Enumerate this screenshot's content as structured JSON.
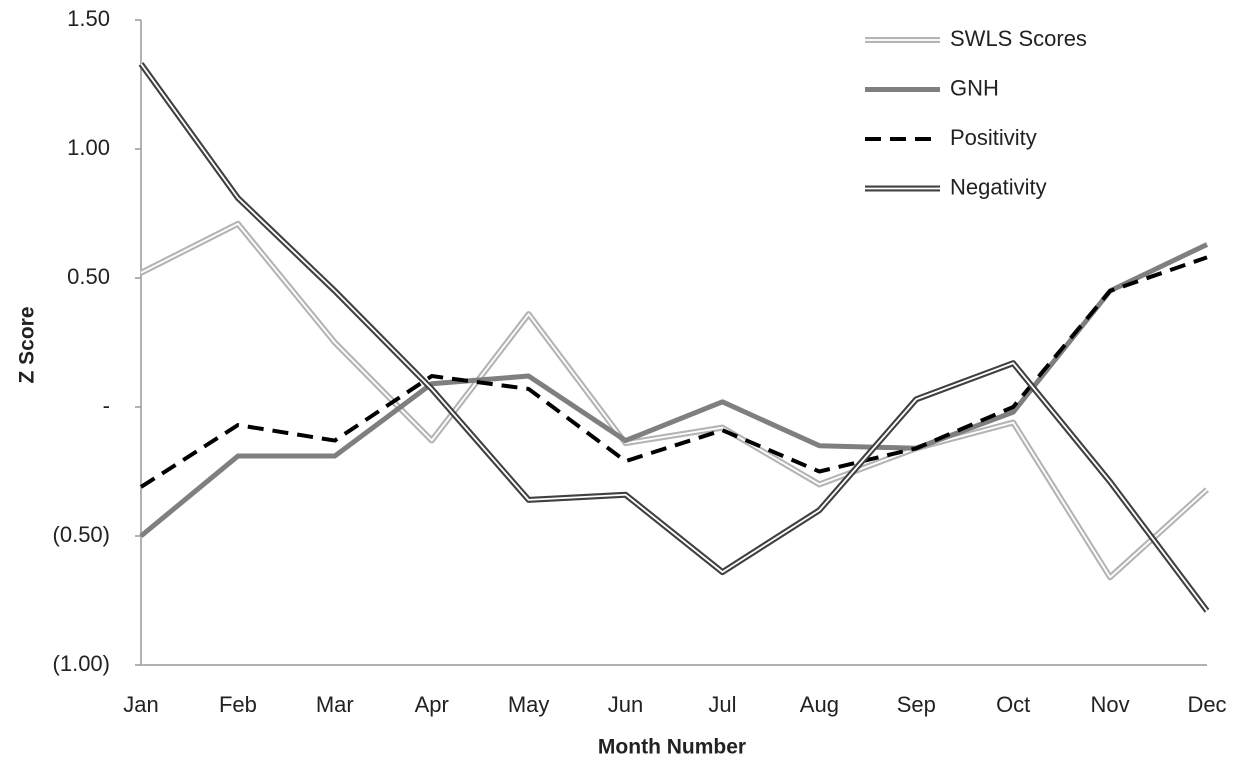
{
  "chart_data": {
    "type": "line",
    "x_label": "Month Number",
    "y_label": "Z Score",
    "categories": [
      "Jan",
      "Feb",
      "Mar",
      "Apr",
      "May",
      "Jun",
      "Jul",
      "Aug",
      "Sep",
      "Oct",
      "Nov",
      "Dec"
    ],
    "ylim": [
      -1,
      1.5
    ],
    "yticks": [
      {
        "value": -1,
        "label": "(1.00)"
      },
      {
        "value": -0.5,
        "label": "(0.50)"
      },
      {
        "value": 0,
        "label": "-"
      },
      {
        "value": 0.5,
        "label": "0.50"
      },
      {
        "value": 1,
        "label": "1.00"
      },
      {
        "value": 1.5,
        "label": "1.50"
      }
    ],
    "grid": false,
    "legend": "upper right",
    "series": [
      {
        "name": "SWLS Scores",
        "color": "#b4b4b4",
        "line_style": "double",
        "values": [
          0.52,
          0.71,
          0.25,
          -0.13,
          0.36,
          -0.14,
          -0.08,
          -0.3,
          -0.16,
          -0.06,
          -0.66,
          -0.32
        ]
      },
      {
        "name": "GNH",
        "color": "#7f7f7f",
        "line_style": "solid",
        "values": [
          -0.5,
          -0.19,
          -0.19,
          0.09,
          0.12,
          -0.13,
          0.02,
          -0.15,
          -0.16,
          -0.02,
          0.45,
          0.63
        ]
      },
      {
        "name": "Positivity",
        "color": "#000000",
        "line_style": "dashed",
        "values": [
          -0.31,
          -0.07,
          -0.13,
          0.12,
          0.07,
          -0.21,
          -0.09,
          -0.25,
          -0.16,
          0.0,
          0.45,
          0.58
        ]
      },
      {
        "name": "Negativity",
        "color": "#404040",
        "line_style": "double",
        "values": [
          1.33,
          0.81,
          0.45,
          0.07,
          -0.36,
          -0.34,
          -0.64,
          -0.4,
          0.03,
          0.17,
          -0.29,
          -0.79
        ]
      }
    ]
  }
}
